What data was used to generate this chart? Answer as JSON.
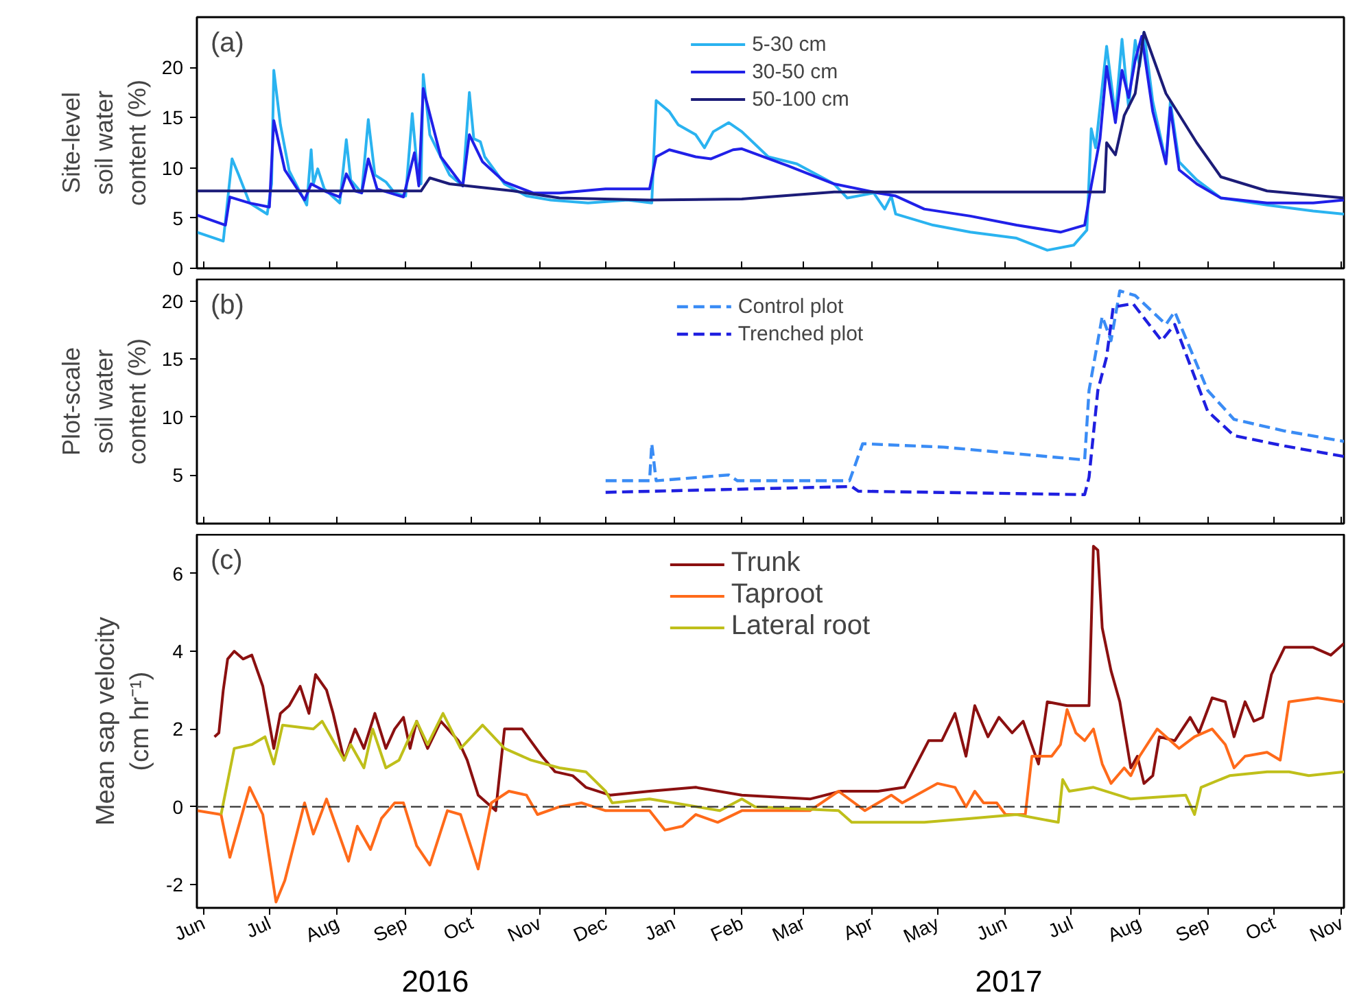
{
  "chart_data": [
    {
      "type": "line",
      "ylabel": "Site-level\nsoil water\ncontent (%)",
      "annotations": [
        "(a)"
      ],
      "legend": "top",
      "tick_labels": "y",
      "xlim": [
        "2016-05-29",
        "2017-11-02"
      ],
      "xticks": [
        {
          "value": "2016-06-01",
          "label": null
        },
        {
          "value": "2016-07-01",
          "label": null
        },
        {
          "value": "2016-08-01",
          "label": null
        },
        {
          "value": "2016-09-01",
          "label": null
        },
        {
          "value": "2016-10-01",
          "label": null
        },
        {
          "value": "2016-11-01",
          "label": null
        },
        {
          "value": "2016-12-01",
          "label": null
        },
        {
          "value": "2017-01-01",
          "label": null
        },
        {
          "value": "2017-02-01",
          "label": null
        },
        {
          "value": "2017-03-01",
          "label": null
        },
        {
          "value": "2017-04-01",
          "label": null
        },
        {
          "value": "2017-05-01",
          "label": null
        },
        {
          "value": "2017-06-01",
          "label": null
        },
        {
          "value": "2017-07-01",
          "label": null
        },
        {
          "value": "2017-08-01",
          "label": null
        },
        {
          "value": "2017-09-01",
          "label": null
        },
        {
          "value": "2017-10-01",
          "label": null
        },
        {
          "value": "2017-11-01",
          "label": null
        }
      ],
      "ylim": [
        0,
        25
      ],
      "yticks": [
        0,
        5,
        10,
        15,
        20
      ],
      "series": [
        {
          "name": "5-30 cm",
          "color": "#2ab3f0",
          "x": [
            "2016-05-29",
            "2016-06-10",
            "2016-06-14",
            "2016-06-17",
            "2016-06-22",
            "2016-06-30",
            "2016-07-02",
            "2016-07-03",
            "2016-07-06",
            "2016-07-10",
            "2016-07-18",
            "2016-07-20",
            "2016-07-21",
            "2016-07-23",
            "2016-07-26",
            "2016-08-02",
            "2016-08-05",
            "2016-08-07",
            "2016-08-12",
            "2016-08-15",
            "2016-08-18",
            "2016-08-23",
            "2016-08-27",
            "2016-09-01",
            "2016-09-04",
            "2016-09-06",
            "2016-09-08",
            "2016-09-09",
            "2016-09-12",
            "2016-09-21",
            "2016-09-27",
            "2016-09-30",
            "2016-10-02",
            "2016-10-05",
            "2016-10-07",
            "2016-10-16",
            "2016-10-26",
            "2016-11-06",
            "2016-11-23",
            "2016-12-11",
            "2016-12-22",
            "2016-12-24",
            "2016-12-30",
            "2017-01-03",
            "2017-01-11",
            "2017-01-15",
            "2017-01-19",
            "2017-01-26",
            "2017-02-01",
            "2017-02-13",
            "2017-02-26",
            "2017-03-15",
            "2017-03-21",
            "2017-04-02",
            "2017-04-07",
            "2017-04-10",
            "2017-04-12",
            "2017-04-29",
            "2017-05-16",
            "2017-06-06",
            "2017-06-20",
            "2017-07-02",
            "2017-07-08",
            "2017-07-10",
            "2017-07-12",
            "2017-07-17",
            "2017-07-21",
            "2017-07-24",
            "2017-07-27",
            "2017-07-30",
            "2017-08-01",
            "2017-08-03",
            "2017-08-07",
            "2017-08-13",
            "2017-08-15",
            "2017-08-19",
            "2017-08-27",
            "2017-09-07",
            "2017-09-28",
            "2017-10-19",
            "2017-11-02"
          ],
          "values": [
            3.6,
            2.7,
            10.9,
            9.3,
            6.5,
            5.4,
            8.4,
            19.7,
            14.3,
            9.7,
            6.3,
            11.8,
            8.4,
            9.9,
            7.9,
            6.5,
            12.8,
            8.8,
            7.5,
            14.8,
            9.3,
            8.6,
            7.5,
            7.2,
            15.4,
            10.6,
            8.4,
            19.3,
            13.3,
            9.3,
            8.2,
            17.5,
            12.9,
            12.6,
            11.1,
            8.4,
            7.2,
            6.8,
            6.5,
            6.8,
            6.5,
            16.7,
            15.6,
            14.3,
            13.3,
            12.0,
            13.6,
            14.5,
            13.6,
            11.1,
            10.4,
            8.4,
            7.0,
            7.5,
            5.9,
            7.2,
            5.4,
            4.3,
            3.6,
            3.0,
            1.8,
            2.3,
            3.8,
            13.9,
            12.0,
            22.1,
            15.2,
            22.8,
            16.0,
            22.7,
            20.1,
            23.5,
            16.6,
            10.6,
            16.6,
            10.6,
            8.8,
            7.0,
            6.3,
            5.7,
            5.4
          ]
        },
        {
          "name": "30-50 cm",
          "color": "#2020e8",
          "x": [
            "2016-05-29",
            "2016-06-11",
            "2016-06-13",
            "2016-06-22",
            "2016-07-01",
            "2016-07-03",
            "2016-07-08",
            "2016-07-17",
            "2016-07-20",
            "2016-07-27",
            "2016-08-02",
            "2016-08-05",
            "2016-08-09",
            "2016-08-12",
            "2016-08-15",
            "2016-08-19",
            "2016-08-31",
            "2016-09-05",
            "2016-09-07",
            "2016-09-09",
            "2016-09-17",
            "2016-09-27",
            "2016-09-30",
            "2016-10-06",
            "2016-10-16",
            "2016-10-29",
            "2016-11-10",
            "2016-12-01",
            "2016-12-21",
            "2016-12-24",
            "2016-12-30",
            "2017-01-11",
            "2017-01-18",
            "2017-01-28",
            "2017-02-01",
            "2017-02-22",
            "2017-03-15",
            "2017-04-04",
            "2017-04-12",
            "2017-04-25",
            "2017-05-16",
            "2017-06-06",
            "2017-06-26",
            "2017-07-07",
            "2017-07-10",
            "2017-07-14",
            "2017-07-17",
            "2017-07-21",
            "2017-07-24",
            "2017-07-27",
            "2017-07-30",
            "2017-08-02",
            "2017-08-07",
            "2017-08-13",
            "2017-08-15",
            "2017-08-19",
            "2017-08-27",
            "2017-09-07",
            "2017-09-28",
            "2017-10-19",
            "2017-11-02"
          ],
          "values": [
            5.3,
            4.3,
            7.1,
            6.5,
            6.1,
            14.7,
            9.8,
            6.8,
            8.4,
            7.6,
            7.1,
            9.4,
            7.7,
            7.5,
            10.9,
            7.9,
            7.1,
            11.5,
            8.2,
            17.9,
            11.1,
            8.2,
            13.3,
            10.6,
            8.6,
            7.5,
            7.5,
            7.9,
            7.9,
            11.1,
            11.8,
            11.1,
            10.9,
            11.8,
            11.9,
            10.2,
            8.4,
            7.5,
            7.2,
            5.9,
            5.2,
            4.3,
            3.6,
            4.3,
            8.2,
            12.9,
            20.1,
            14.5,
            19.7,
            17.0,
            20.7,
            23.1,
            15.6,
            10.4,
            16.0,
            9.8,
            8.4,
            7.0,
            6.5,
            6.5,
            6.8
          ]
        },
        {
          "name": "50-100 cm",
          "color": "#1c1c78",
          "x": [
            "2016-05-29",
            "2016-09-08",
            "2016-09-12",
            "2016-09-21",
            "2016-10-20",
            "2016-11-10",
            "2016-12-21",
            "2017-02-01",
            "2017-02-13",
            "2017-03-15",
            "2017-07-16",
            "2017-07-17",
            "2017-07-21",
            "2017-07-25",
            "2017-07-30",
            "2017-08-03",
            "2017-08-13",
            "2017-08-27",
            "2017-09-07",
            "2017-09-28",
            "2017-11-02"
          ],
          "values": [
            7.7,
            7.7,
            9.0,
            8.4,
            7.7,
            7.0,
            6.8,
            6.9,
            7.1,
            7.6,
            7.6,
            12.5,
            11.3,
            15.2,
            17.4,
            23.5,
            17.4,
            12.5,
            9.1,
            7.7,
            7.0
          ]
        }
      ]
    },
    {
      "type": "line",
      "ylabel": "Plot-scale\nsoil water\ncontent (%)",
      "annotations": [
        "(b)"
      ],
      "legend": "top",
      "tick_labels": "y",
      "line_style": "dashed",
      "xlim": [
        "2016-05-29",
        "2017-11-02"
      ],
      "xticks": [
        {
          "value": "2016-06-01",
          "label": null
        },
        {
          "value": "2016-07-01",
          "label": null
        },
        {
          "value": "2016-08-01",
          "label": null
        },
        {
          "value": "2016-09-01",
          "label": null
        },
        {
          "value": "2016-10-01",
          "label": null
        },
        {
          "value": "2016-11-01",
          "label": null
        },
        {
          "value": "2016-12-01",
          "label": null
        },
        {
          "value": "2017-01-01",
          "label": null
        },
        {
          "value": "2017-02-01",
          "label": null
        },
        {
          "value": "2017-03-01",
          "label": null
        },
        {
          "value": "2017-04-01",
          "label": null
        },
        {
          "value": "2017-05-01",
          "label": null
        },
        {
          "value": "2017-06-01",
          "label": null
        },
        {
          "value": "2017-07-01",
          "label": null
        },
        {
          "value": "2017-08-01",
          "label": null
        },
        {
          "value": "2017-09-01",
          "label": null
        },
        {
          "value": "2017-10-01",
          "label": null
        },
        {
          "value": "2017-11-01",
          "label": null
        }
      ],
      "ylim": [
        0.8,
        21.9
      ],
      "yticks": [
        5,
        10,
        15,
        20
      ],
      "series": [
        {
          "name": "Control plot",
          "color": "#3a8cf5",
          "x": [
            "2016-12-01",
            "2016-12-21",
            "2016-12-22",
            "2016-12-24",
            "2017-01-26",
            "2017-01-30",
            "2017-03-22",
            "2017-03-28",
            "2017-05-04",
            "2017-07-07",
            "2017-07-09",
            "2017-07-15",
            "2017-07-19",
            "2017-07-23",
            "2017-07-30",
            "2017-08-13",
            "2017-08-17",
            "2017-09-01",
            "2017-09-13",
            "2017-10-06",
            "2017-11-02"
          ],
          "values": [
            4.5,
            4.5,
            7.7,
            4.5,
            5.0,
            4.5,
            4.5,
            7.7,
            7.4,
            6.3,
            12.3,
            18.7,
            16.6,
            20.9,
            20.5,
            18.0,
            19.1,
            12.3,
            9.8,
            8.8,
            7.9
          ]
        },
        {
          "name": "Trenched plot",
          "color": "#1f1fe0",
          "x": [
            "2016-12-01",
            "2017-03-23",
            "2017-03-26",
            "2017-07-07",
            "2017-07-09",
            "2017-07-13",
            "2017-07-17",
            "2017-07-20",
            "2017-07-29",
            "2017-08-11",
            "2017-08-17",
            "2017-09-01",
            "2017-09-13",
            "2017-10-06",
            "2017-11-02"
          ],
          "values": [
            3.5,
            4.0,
            3.6,
            3.3,
            4.8,
            12.3,
            15.2,
            19.5,
            19.8,
            16.6,
            18.0,
            10.5,
            8.4,
            7.5,
            6.6
          ]
        }
      ]
    },
    {
      "type": "line",
      "ylabel": "Mean sap velocity\n(cm hr⁻¹)",
      "annotations": [
        "(c)",
        "2016",
        "2017"
      ],
      "legend": "top",
      "xlim": [
        "2016-05-29",
        "2017-11-02"
      ],
      "xticks": [
        {
          "value": "2016-06-01",
          "label": "Jun"
        },
        {
          "value": "2016-07-01",
          "label": "Jul"
        },
        {
          "value": "2016-08-01",
          "label": "Aug"
        },
        {
          "value": "2016-09-01",
          "label": "Sep"
        },
        {
          "value": "2016-10-01",
          "label": "Oct"
        },
        {
          "value": "2016-11-01",
          "label": "Nov"
        },
        {
          "value": "2016-12-01",
          "label": "Dec"
        },
        {
          "value": "2017-01-01",
          "label": "Jan"
        },
        {
          "value": "2017-02-01",
          "label": "Feb"
        },
        {
          "value": "2017-03-01",
          "label": "Mar"
        },
        {
          "value": "2017-04-01",
          "label": "Apr"
        },
        {
          "value": "2017-05-01",
          "label": "May"
        },
        {
          "value": "2017-06-01",
          "label": "Jun"
        },
        {
          "value": "2017-07-01",
          "label": "Jul"
        },
        {
          "value": "2017-08-01",
          "label": "Aug"
        },
        {
          "value": "2017-09-01",
          "label": "Sep"
        },
        {
          "value": "2017-10-01",
          "label": "Oct"
        },
        {
          "value": "2017-11-01",
          "label": "Nov"
        }
      ],
      "ylim": [
        -2.6,
        7
      ],
      "yticks": [
        -2,
        0,
        2,
        4,
        6
      ],
      "ref_lines": [
        {
          "axis": "y",
          "value": 0,
          "color": "#333333",
          "line_style": "dashed"
        }
      ],
      "series": [
        {
          "name": "Trunk",
          "color": "#8b1010",
          "x": [
            "2016-06-06",
            "2016-06-08",
            "2016-06-10",
            "2016-06-12",
            "2016-06-15",
            "2016-06-19",
            "2016-06-23",
            "2016-06-28",
            "2016-07-03",
            "2016-07-06",
            "2016-07-10",
            "2016-07-15",
            "2016-07-19",
            "2016-07-22",
            "2016-07-27",
            "2016-07-30",
            "2016-08-04",
            "2016-08-09",
            "2016-08-13",
            "2016-08-18",
            "2016-08-23",
            "2016-08-27",
            "2016-08-31",
            "2016-09-03",
            "2016-09-06",
            "2016-09-11",
            "2016-09-17",
            "2016-09-25",
            "2016-09-29",
            "2016-10-04",
            "2016-10-12",
            "2016-10-16",
            "2016-10-24",
            "2016-11-02",
            "2016-11-08",
            "2016-11-16",
            "2016-11-22",
            "2016-12-03",
            "2016-12-21",
            "2017-01-11",
            "2017-02-01",
            "2017-03-04",
            "2017-03-18",
            "2017-04-04",
            "2017-04-16",
            "2017-04-27",
            "2017-05-03",
            "2017-05-09",
            "2017-05-14",
            "2017-05-18",
            "2017-05-24",
            "2017-05-29",
            "2017-06-04",
            "2017-06-09",
            "2017-06-16",
            "2017-06-20",
            "2017-06-29",
            "2017-07-09",
            "2017-07-11",
            "2017-07-13",
            "2017-07-15",
            "2017-07-19",
            "2017-07-23",
            "2017-07-28",
            "2017-07-31",
            "2017-08-03",
            "2017-08-07",
            "2017-08-10",
            "2017-08-17",
            "2017-08-24",
            "2017-08-28",
            "2017-09-03",
            "2017-09-09",
            "2017-09-13",
            "2017-09-18",
            "2017-09-22",
            "2017-09-26",
            "2017-09-30",
            "2017-10-06",
            "2017-10-19",
            "2017-10-27",
            "2017-11-02"
          ],
          "values": [
            1.8,
            1.9,
            3.0,
            3.8,
            4.0,
            3.8,
            3.9,
            3.1,
            1.5,
            2.4,
            2.6,
            3.1,
            2.4,
            3.4,
            3.0,
            2.4,
            1.2,
            2.0,
            1.5,
            2.4,
            1.5,
            2.0,
            2.3,
            1.5,
            2.2,
            1.5,
            2.2,
            1.7,
            1.2,
            0.3,
            -0.1,
            2.0,
            2.0,
            1.3,
            0.9,
            0.8,
            0.5,
            0.3,
            0.4,
            0.5,
            0.3,
            0.2,
            0.4,
            0.4,
            0.5,
            1.7,
            1.7,
            2.4,
            1.3,
            2.6,
            1.8,
            2.3,
            1.9,
            2.2,
            1.1,
            2.7,
            2.6,
            2.6,
            6.7,
            6.6,
            4.6,
            3.5,
            2.7,
            1.0,
            1.3,
            0.6,
            0.8,
            1.8,
            1.7,
            2.3,
            1.9,
            2.8,
            2.7,
            1.8,
            2.7,
            2.2,
            2.3,
            3.4,
            4.1,
            4.1,
            3.9,
            4.2
          ]
        },
        {
          "name": "Taproot",
          "color": "#ff6a1a",
          "x": [
            "2016-05-29",
            "2016-06-09",
            "2016-06-13",
            "2016-06-22",
            "2016-06-28",
            "2016-07-04",
            "2016-07-08",
            "2016-07-17",
            "2016-07-21",
            "2016-07-27",
            "2016-08-06",
            "2016-08-10",
            "2016-08-16",
            "2016-08-21",
            "2016-08-27",
            "2016-08-31",
            "2016-09-06",
            "2016-09-12",
            "2016-09-20",
            "2016-09-26",
            "2016-10-04",
            "2016-10-10",
            "2016-10-18",
            "2016-10-26",
            "2016-10-31",
            "2016-11-10",
            "2016-11-20",
            "2016-12-01",
            "2016-12-21",
            "2016-12-28",
            "2017-01-05",
            "2017-01-11",
            "2017-01-21",
            "2017-02-01",
            "2017-03-04",
            "2017-03-17",
            "2017-03-29",
            "2017-04-10",
            "2017-04-15",
            "2017-05-01",
            "2017-05-09",
            "2017-05-14",
            "2017-05-18",
            "2017-05-22",
            "2017-05-28",
            "2017-06-01",
            "2017-06-10",
            "2017-06-13",
            "2017-06-22",
            "2017-06-26",
            "2017-06-29",
            "2017-07-03",
            "2017-07-07",
            "2017-07-11",
            "2017-07-15",
            "2017-07-19",
            "2017-07-25",
            "2017-07-28",
            "2017-08-01",
            "2017-08-09",
            "2017-08-15",
            "2017-08-19",
            "2017-08-26",
            "2017-09-03",
            "2017-09-09",
            "2017-09-13",
            "2017-09-18",
            "2017-09-28",
            "2017-10-04",
            "2017-10-08",
            "2017-10-21",
            "2017-11-02"
          ],
          "values": [
            -0.1,
            -0.2,
            -1.3,
            0.5,
            -0.2,
            -2.45,
            -1.9,
            0.1,
            -0.7,
            0.2,
            -1.4,
            -0.5,
            -1.1,
            -0.3,
            0.1,
            0.1,
            -1.0,
            -1.5,
            -0.1,
            -0.2,
            -1.6,
            0.1,
            0.4,
            0.3,
            -0.2,
            0.0,
            0.1,
            -0.1,
            -0.1,
            -0.6,
            -0.5,
            -0.2,
            -0.4,
            -0.1,
            -0.1,
            0.4,
            -0.1,
            0.3,
            0.1,
            0.6,
            0.5,
            0.0,
            0.4,
            0.1,
            0.1,
            -0.2,
            -0.2,
            1.3,
            1.3,
            1.6,
            2.5,
            1.9,
            1.7,
            2.0,
            1.1,
            0.6,
            1.0,
            0.8,
            1.3,
            2.0,
            1.7,
            1.5,
            1.8,
            2.0,
            1.6,
            1.0,
            1.3,
            1.4,
            1.2,
            2.7,
            2.8,
            2.7
          ]
        },
        {
          "name": "Lateral root",
          "color": "#bfbf1a",
          "x": [
            "2016-06-09",
            "2016-06-15",
            "2016-06-23",
            "2016-06-29",
            "2016-07-03",
            "2016-07-07",
            "2016-07-21",
            "2016-07-25",
            "2016-08-04",
            "2016-08-07",
            "2016-08-13",
            "2016-08-17",
            "2016-08-23",
            "2016-08-29",
            "2016-09-06",
            "2016-09-11",
            "2016-09-18",
            "2016-09-26",
            "2016-10-06",
            "2016-10-16",
            "2016-10-28",
            "2016-11-10",
            "2016-11-22",
            "2016-12-01",
            "2016-12-04",
            "2016-12-21",
            "2017-01-01",
            "2017-01-22",
            "2017-02-01",
            "2017-02-07",
            "2017-03-17",
            "2017-03-23",
            "2017-04-25",
            "2017-05-16",
            "2017-06-06",
            "2017-06-25",
            "2017-06-27",
            "2017-06-30",
            "2017-07-11",
            "2017-07-28",
            "2017-08-22",
            "2017-08-26",
            "2017-08-29",
            "2017-09-11",
            "2017-09-28",
            "2017-10-08",
            "2017-10-17",
            "2017-11-02"
          ],
          "values": [
            -0.2,
            1.5,
            1.6,
            1.8,
            1.1,
            2.1,
            2.0,
            2.2,
            1.2,
            1.6,
            1.0,
            2.0,
            1.0,
            1.2,
            2.2,
            1.6,
            2.4,
            1.5,
            2.1,
            1.5,
            1.2,
            1.0,
            0.9,
            0.4,
            0.1,
            0.2,
            0.1,
            -0.1,
            0.2,
            0.0,
            -0.1,
            -0.4,
            -0.4,
            -0.3,
            -0.2,
            -0.4,
            0.7,
            0.4,
            0.5,
            0.2,
            0.3,
            -0.2,
            0.5,
            0.8,
            0.9,
            0.9,
            0.8,
            0.9
          ]
        }
      ]
    }
  ]
}
